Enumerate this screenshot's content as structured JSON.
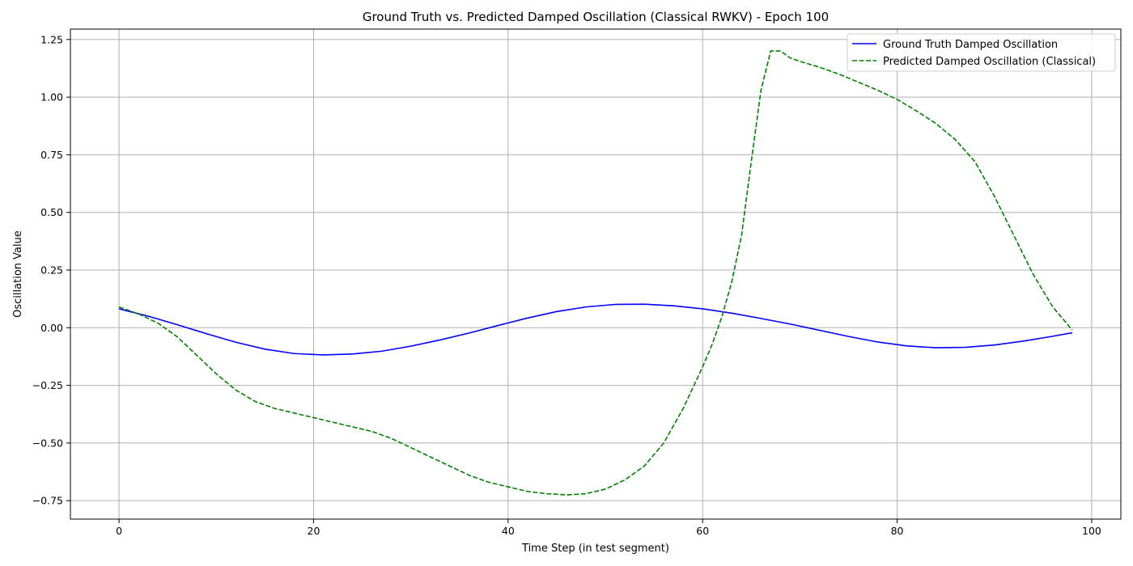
{
  "chart_data": {
    "type": "line",
    "title": "Ground Truth vs. Predicted Damped Oscillation (Classical RWKV) - Epoch 100",
    "xlabel": "Time Step (in test segment)",
    "ylabel": "Oscillation Value",
    "xlim": [
      -5,
      103
    ],
    "ylim": [
      -0.83,
      1.295
    ],
    "xticks": [
      0,
      20,
      40,
      60,
      80,
      100
    ],
    "xtick_labels": [
      "0",
      "20",
      "40",
      "60",
      "80",
      "100"
    ],
    "yticks": [
      -0.75,
      -0.5,
      -0.25,
      0.0,
      0.25,
      0.5,
      0.75,
      1.0,
      1.25
    ],
    "ytick_labels": [
      "−0.75",
      "−0.50",
      "−0.25",
      "0.00",
      "0.25",
      "0.50",
      "0.75",
      "1.00",
      "1.25"
    ],
    "grid": true,
    "legend_position": "top-right",
    "series": [
      {
        "name": "Ground Truth Damped Oscillation",
        "color": "#0000ff",
        "style": "solid",
        "x": [
          0,
          3,
          6,
          9,
          12,
          15,
          18,
          21,
          24,
          27,
          30,
          33,
          36,
          39,
          42,
          45,
          48,
          51,
          54,
          57,
          60,
          63,
          66,
          69,
          72,
          75,
          78,
          81,
          84,
          87,
          90,
          93,
          96,
          98
        ],
        "y": [
          0.082,
          0.05,
          0.013,
          -0.026,
          -0.063,
          -0.093,
          -0.112,
          -0.118,
          -0.114,
          -0.102,
          -0.08,
          -0.053,
          -0.023,
          0.01,
          0.042,
          0.07,
          0.09,
          0.101,
          0.102,
          0.095,
          0.082,
          0.063,
          0.04,
          0.016,
          -0.011,
          -0.038,
          -0.062,
          -0.079,
          -0.087,
          -0.085,
          -0.075,
          -0.058,
          -0.037,
          -0.022
        ]
      },
      {
        "name": "Predicted Damped Oscillation (Classical)",
        "color": "#008000",
        "style": "dashed",
        "x": [
          0,
          2,
          4,
          6,
          8,
          10,
          12,
          14,
          16,
          18,
          20,
          22,
          24,
          26,
          28,
          30,
          32,
          34,
          36,
          38,
          40,
          42,
          44,
          46,
          48,
          50,
          52,
          54,
          56,
          58,
          60,
          61,
          62,
          63,
          64,
          65,
          66,
          67,
          68,
          69,
          70,
          72,
          74,
          76,
          78,
          80,
          82,
          84,
          86,
          88,
          90,
          92,
          94,
          96,
          98
        ],
        "y": [
          0.09,
          0.06,
          0.02,
          -0.04,
          -0.12,
          -0.2,
          -0.27,
          -0.32,
          -0.35,
          -0.37,
          -0.39,
          -0.41,
          -0.43,
          -0.45,
          -0.48,
          -0.52,
          -0.56,
          -0.6,
          -0.64,
          -0.67,
          -0.69,
          -0.71,
          -0.72,
          -0.725,
          -0.72,
          -0.7,
          -0.66,
          -0.6,
          -0.5,
          -0.35,
          -0.17,
          -0.07,
          0.05,
          0.2,
          0.4,
          0.72,
          1.03,
          1.2,
          1.2,
          1.17,
          1.155,
          1.13,
          1.1,
          1.065,
          1.03,
          0.99,
          0.94,
          0.885,
          0.815,
          0.72,
          0.57,
          0.4,
          0.23,
          0.09,
          -0.01
        ]
      }
    ]
  }
}
